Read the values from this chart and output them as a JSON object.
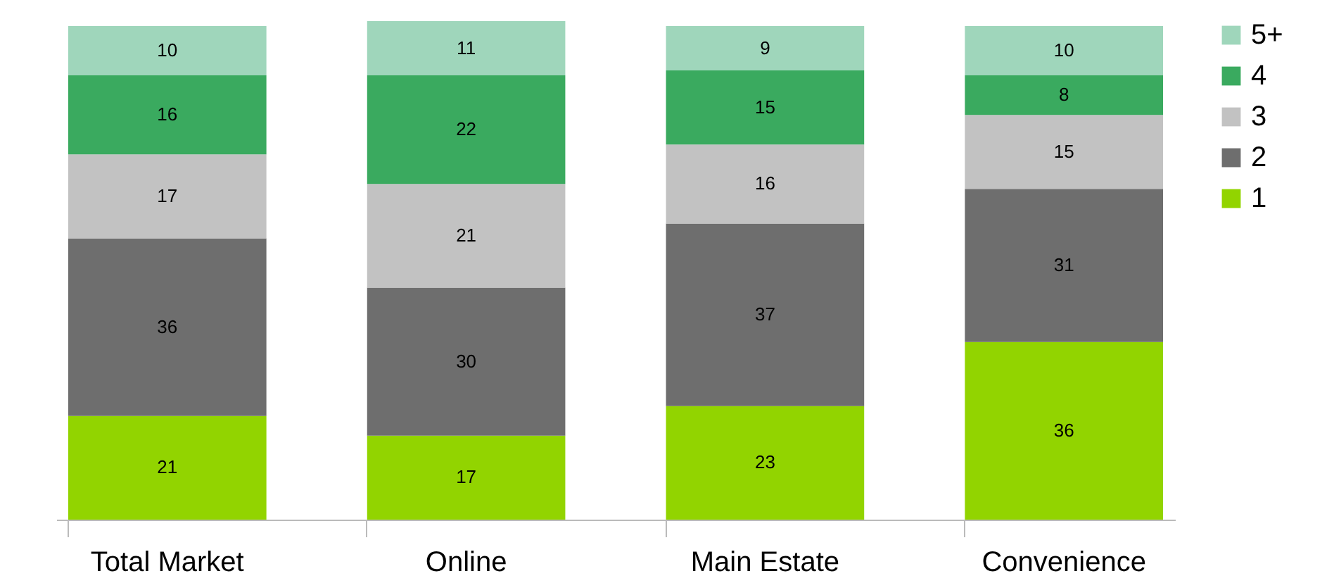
{
  "chart_data": {
    "type": "bar",
    "stacked": true,
    "data_labels": true,
    "legend": "right",
    "categories": [
      "Total Market",
      "Online",
      "Main Estate",
      "Convenience"
    ],
    "series": [
      {
        "name": "1",
        "color": "#92d400",
        "values": [
          21,
          17,
          23,
          36
        ]
      },
      {
        "name": "2",
        "color": "#6e6e6e",
        "values": [
          36,
          30,
          37,
          31
        ]
      },
      {
        "name": "3",
        "color": "#c2c2c2",
        "values": [
          17,
          21,
          16,
          15
        ]
      },
      {
        "name": "4",
        "color": "#3aaa5f",
        "values": [
          16,
          22,
          15,
          8
        ]
      },
      {
        "name": "5+",
        "color": "#9fd6bb",
        "values": [
          10,
          11,
          9,
          10
        ]
      }
    ]
  }
}
